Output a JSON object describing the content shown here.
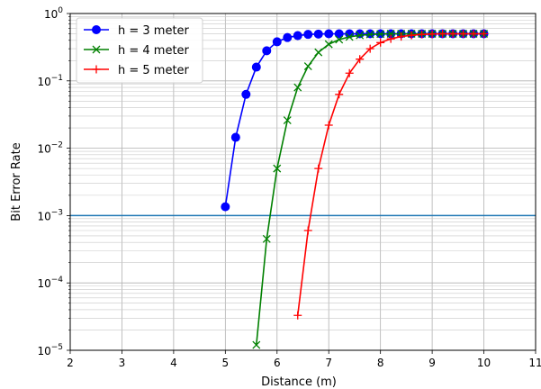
{
  "chart_data": {
    "type": "line",
    "title": "",
    "xlabel": "Distance (m)",
    "ylabel": "Bit Error Rate",
    "xlim": [
      2,
      11
    ],
    "ylim_log10": [
      -5,
      0
    ],
    "y_scale": "log",
    "grid": "major and minor",
    "legend_position": "top-left",
    "x_ticks": [
      {
        "value": 2,
        "label": "2"
      },
      {
        "value": 3,
        "label": "3"
      },
      {
        "value": 4,
        "label": "4"
      },
      {
        "value": 5,
        "label": "5"
      },
      {
        "value": 6,
        "label": "6"
      },
      {
        "value": 7,
        "label": "7"
      },
      {
        "value": 8,
        "label": "8"
      },
      {
        "value": 9,
        "label": "9"
      },
      {
        "value": 10,
        "label": "10"
      },
      {
        "value": 11,
        "label": "11"
      }
    ],
    "y_ticks": [
      {
        "exp": 0,
        "base": "10",
        "sup": "0"
      },
      {
        "exp": -1,
        "base": "10",
        "sup": "−1"
      },
      {
        "exp": -2,
        "base": "10",
        "sup": "−2"
      },
      {
        "exp": -3,
        "base": "10",
        "sup": "−3"
      },
      {
        "exp": -4,
        "base": "10",
        "sup": "−4"
      },
      {
        "exp": -5,
        "base": "10",
        "sup": "−5"
      }
    ],
    "reference_line": {
      "y": 0.001,
      "color": "#1f77b4"
    },
    "series": [
      {
        "name": "h = 3 meter",
        "color": "#0000ff",
        "marker": "circle",
        "x": [
          5.0,
          5.2,
          5.4,
          5.6,
          5.8,
          6.0,
          6.2,
          6.4,
          6.6,
          6.8,
          7.0,
          7.2,
          7.4,
          7.6,
          7.8,
          8.0,
          8.2,
          8.4,
          8.6,
          8.8,
          9.0,
          9.2,
          9.4,
          9.6,
          9.8,
          10.0
        ],
        "y": [
          0.00135,
          0.0145,
          0.063,
          0.16,
          0.28,
          0.38,
          0.44,
          0.47,
          0.49,
          0.495,
          0.5,
          0.5,
          0.5,
          0.5,
          0.5,
          0.5,
          0.5,
          0.5,
          0.5,
          0.5,
          0.5,
          0.5,
          0.5,
          0.5,
          0.5,
          0.5
        ]
      },
      {
        "name": "h = 4 meter",
        "color": "#008000",
        "marker": "x",
        "x": [
          5.6,
          5.8,
          6.0,
          6.2,
          6.4,
          6.6,
          6.8,
          7.0,
          7.2,
          7.4,
          7.6,
          7.8,
          8.0,
          8.2,
          8.4,
          8.6,
          8.8,
          9.0,
          9.2,
          9.4,
          9.6,
          9.8,
          10.0
        ],
        "y": [
          1.2e-05,
          0.00045,
          0.005,
          0.026,
          0.08,
          0.165,
          0.265,
          0.35,
          0.41,
          0.45,
          0.475,
          0.49,
          0.495,
          0.5,
          0.5,
          0.5,
          0.5,
          0.5,
          0.5,
          0.5,
          0.5,
          0.5,
          0.5
        ]
      },
      {
        "name": "h = 5 meter",
        "color": "#ff0000",
        "marker": "plus",
        "x": [
          6.4,
          6.6,
          6.8,
          7.0,
          7.2,
          7.4,
          7.6,
          7.8,
          8.0,
          8.2,
          8.4,
          8.6,
          8.8,
          9.0,
          9.2,
          9.4,
          9.6,
          9.8,
          10.0
        ],
        "y": [
          3.3e-05,
          0.0006,
          0.005,
          0.022,
          0.063,
          0.13,
          0.21,
          0.3,
          0.37,
          0.42,
          0.455,
          0.475,
          0.49,
          0.495,
          0.5,
          0.5,
          0.5,
          0.5,
          0.5
        ]
      }
    ]
  }
}
